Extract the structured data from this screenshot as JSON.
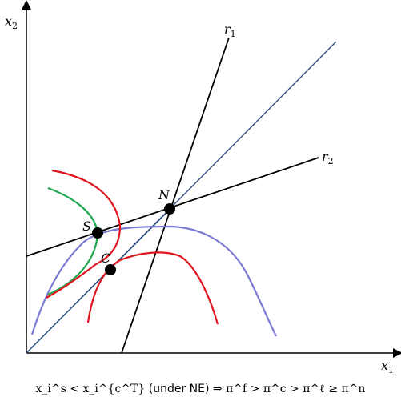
{
  "axes": {
    "x_label_main": "x",
    "x_label_sub": "1",
    "y_label_main": "x",
    "y_label_sub": "2"
  },
  "lines": {
    "r1_main": "r",
    "r1_sub": "1",
    "r2_main": "r",
    "r2_sub": "2"
  },
  "points": {
    "N": "N",
    "S": "S",
    "C": "C"
  },
  "colors": {
    "axis": "#000000",
    "reaction_lines": "#000000",
    "diagonal": "#334d80",
    "red_curves": "#e0141e",
    "green_curve": "#1fa84f",
    "blue_curve": "#7a7ad4",
    "points": "#000000"
  },
  "caption": {
    "left": "x_i^s < x_i^{c^T}",
    "middle": "(under NE)",
    "arrow": "⇒",
    "right": "π^f > π^c > π^ℓ ≥ π^n"
  }
}
